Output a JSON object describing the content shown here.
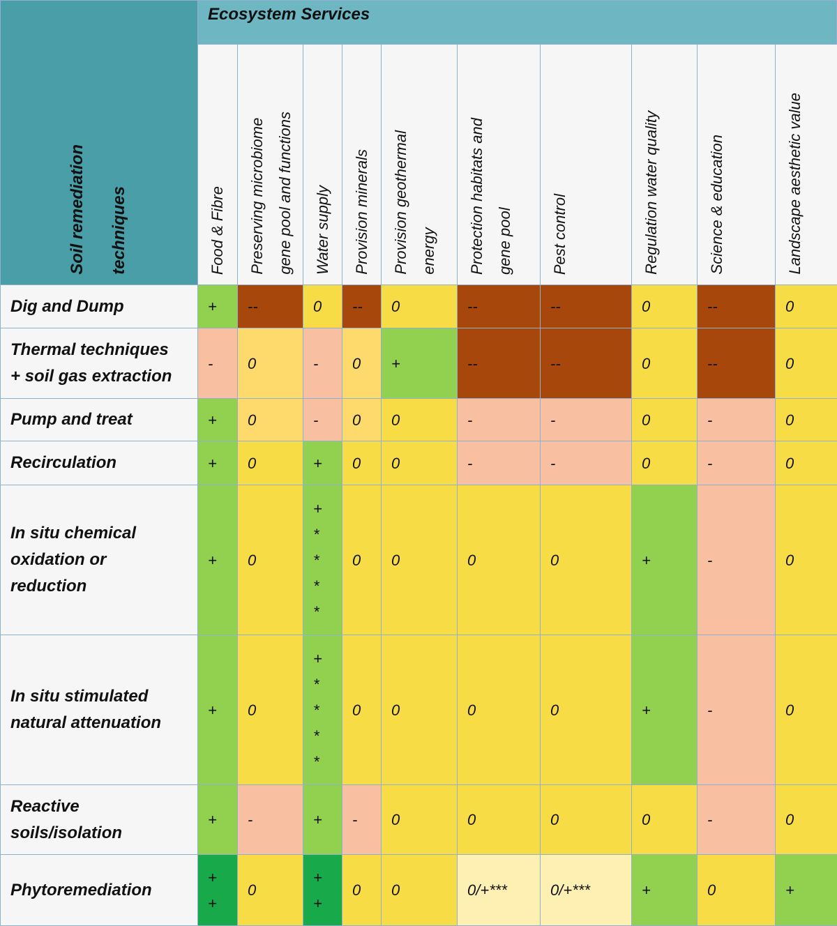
{
  "group_header": "Ecosystem Services",
  "corner": "Soil remediation\ntechniques",
  "columns": [
    "Food & Fibre",
    "Preserving microbiome\ngene pool and functions",
    "Water supply",
    "Provision minerals",
    "Provision geothermal\nenergy",
    "Protection habitats and\ngene pool",
    "Pest control",
    "Regulation water quality",
    "Science & education",
    "Landscape aesthetic value"
  ],
  "rows": [
    {
      "label": "Dig and Dump",
      "cells": [
        "+",
        "--",
        "0",
        "--",
        "0",
        "--",
        "--",
        "0",
        "--",
        "0"
      ],
      "colors": [
        "#92d050",
        "#a8470c",
        "#f8dc46",
        "#a8470c",
        "#f8dc46",
        "#a8470c",
        "#a8470c",
        "#f8dc46",
        "#a8470c",
        "#f8dc46"
      ]
    },
    {
      "label": "Thermal techniques\n+ soil gas extraction",
      "cells": [
        "-",
        "0",
        "-",
        "0",
        "+",
        "--",
        "--",
        "0",
        "--",
        "0"
      ],
      "colors": [
        "#f8c0a0",
        "#fed96c",
        "#f8c0a0",
        "#fed96c",
        "#92d050",
        "#a8470c",
        "#a8470c",
        "#f8dc46",
        "#a8470c",
        "#f8dc46"
      ]
    },
    {
      "label": "Pump and treat",
      "cells": [
        "+",
        "0",
        "-",
        "0",
        "0",
        "-",
        "-",
        "0",
        "-",
        "0"
      ],
      "colors": [
        "#92d050",
        "#fed96c",
        "#f8c0a0",
        "#fed96c",
        "#f8dc46",
        "#f8c0a0",
        "#f8c0a0",
        "#f8dc46",
        "#f8c0a0",
        "#f8dc46"
      ]
    },
    {
      "label": "Recirculation",
      "cells": [
        "+",
        "0",
        "+",
        "0",
        "0",
        "-",
        "-",
        "0",
        "-",
        "0"
      ],
      "colors": [
        "#92d050",
        "#f8dc46",
        "#92d050",
        "#f8dc46",
        "#f8dc46",
        "#f8c0a0",
        "#f8c0a0",
        "#f8dc46",
        "#f8c0a0",
        "#f8dc46"
      ]
    },
    {
      "label": "In situ chemical\noxidation or\nreduction",
      "cells": [
        "+",
        "0",
        "+\n*\n*\n*\n*",
        "0",
        "0",
        "0",
        "0",
        "+",
        "-",
        "0"
      ],
      "colors": [
        "#92d050",
        "#f8dc46",
        "#92d050",
        "#f8dc46",
        "#f8dc46",
        "#f8dc46",
        "#f8dc46",
        "#92d050",
        "#f8c0a0",
        "#f8dc46"
      ]
    },
    {
      "label": "In situ stimulated\nnatural attenuation",
      "cells": [
        "+",
        "0",
        "+\n*\n*\n*\n*",
        "0",
        "0",
        "0",
        "0",
        "+",
        "-",
        "0"
      ],
      "colors": [
        "#92d050",
        "#f8dc46",
        "#92d050",
        "#f8dc46",
        "#f8dc46",
        "#f8dc46",
        "#f8dc46",
        "#92d050",
        "#f8c0a0",
        "#f8dc46"
      ]
    },
    {
      "label": "Reactive\nsoils/isolation",
      "cells": [
        "+",
        "-",
        "+",
        "-",
        "0",
        "0",
        "0",
        "0",
        "-",
        "0"
      ],
      "colors": [
        "#92d050",
        "#f8c0a0",
        "#92d050",
        "#f8c0a0",
        "#f8dc46",
        "#f8dc46",
        "#f8dc46",
        "#f8dc46",
        "#f8c0a0",
        "#f8dc46"
      ]
    },
    {
      "label": "Phytoremediation",
      "cells": [
        "+\n+",
        "0",
        "+\n+",
        "0",
        "0",
        "0/+***",
        "0/+***",
        "+",
        "0",
        "+"
      ],
      "colors": [
        "#18a94a",
        "#f8dc46",
        "#18a94a",
        "#f8dc46",
        "#f8dc46",
        "#fdf0b2",
        "#fdf0b2",
        "#92d050",
        "#f8dc46",
        "#92d050"
      ]
    }
  ]
}
